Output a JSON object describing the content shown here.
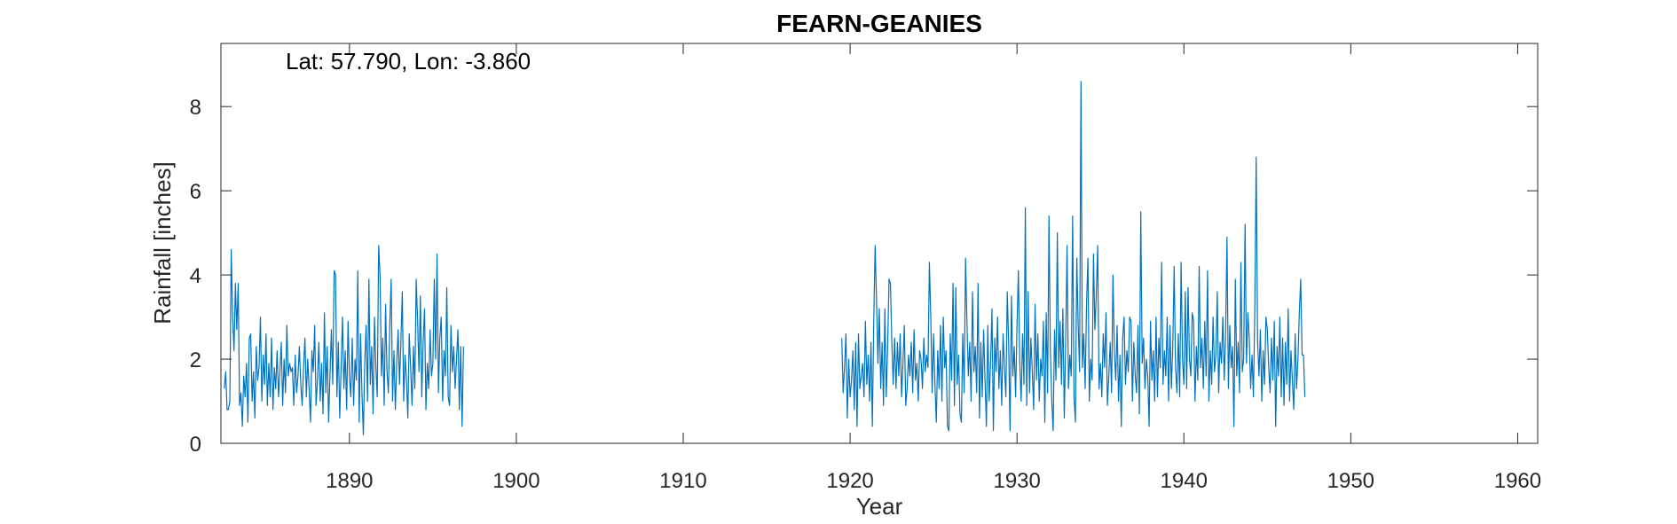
{
  "chart_data": {
    "type": "line",
    "title": "FEARN-GEANIES",
    "annotation": "Lat: 57.790, Lon: -3.860",
    "xlabel": "Year",
    "ylabel": "Rainfall [inches]",
    "xlim": [
      1882.3,
      1961.2
    ],
    "ylim": [
      0,
      9.5
    ],
    "xticks": [
      1890,
      1900,
      1910,
      1920,
      1930,
      1940,
      1950,
      1960
    ],
    "yticks": [
      0,
      2,
      4,
      6,
      8
    ],
    "grid": false,
    "line_color": "#0072BD",
    "series": [
      {
        "segments": [
          {
            "start_year": 1882.5,
            "step_years": 0.0833333,
            "values": [
              1.3,
              1.7,
              0.8,
              0.8,
              1.0,
              4.6,
              3.0,
              2.2,
              3.8,
              2.7,
              3.8,
              0.9,
              1.2,
              0.4,
              1.6,
              1.1,
              1.9,
              0.5,
              2.5,
              2.6,
              1.0,
              1.7,
              0.6,
              2.3,
              1.5,
              1.8,
              3.0,
              1.0,
              2.1,
              1.4,
              2.6,
              0.9,
              1.9,
              1.1,
              2.5,
              0.8,
              1.8,
              1.3,
              2.2,
              1.1,
              1.7,
              2.4,
              0.9,
              2.0,
              1.2,
              2.8,
              1.6,
              1.9,
              1.7,
              1.8,
              0.9,
              2.1,
              1.2,
              1.6,
              2.3,
              1.4,
              0.9,
              1.8,
              2.5,
              1.1,
              2.0,
              1.3,
              0.5,
              2.2,
              1.7,
              2.8,
              0.9,
              1.5,
              2.4,
              1.0,
              1.9,
              0.7,
              3.1,
              1.2,
              2.3,
              0.5,
              1.6,
              2.7,
              1.4,
              4.1,
              4.0,
              1.1,
              2.4,
              0.6,
              1.8,
              3.0,
              1.3,
              2.2,
              0.8,
              2.9,
              1.6,
              1.1,
              2.5,
              0.9,
              2.0,
              1.5,
              4.1,
              0.5,
              2.6,
              1.2,
              0.2,
              1.9,
              2.8,
              1.0,
              3.9,
              1.4,
              2.3,
              0.7,
              3.0,
              1.8,
              1.1,
              4.7,
              4.0,
              1.6,
              2.5,
              0.9,
              3.3,
              1.7,
              1.2,
              2.8,
              3.9,
              1.0,
              2.2,
              0.8,
              1.9,
              2.7,
              1.4,
              2.4,
              3.6,
              1.0,
              2.1,
              1.5,
              0.6,
              2.6,
              1.8,
              0.9,
              2.3,
              1.3,
              3.9,
              2.9,
              1.7,
              3.5,
              1.1,
              2.4,
              3.2,
              0.8,
              1.9,
              1.3,
              2.7,
              1.6,
              1.9,
              3.9,
              2.0,
              4.5,
              1.2,
              2.5,
              3.0,
              1.0,
              2.2,
              1.6,
              3.7,
              1.1,
              0.9,
              2.8,
              1.7,
              2.3,
              1.3,
              2.0,
              2.7,
              0.8,
              2.3,
              0.4,
              2.3
            ]
          },
          {
            "start_year": 1919.5,
            "step_years": 0.0833333,
            "values": [
              2.5,
              1.2,
              1.8,
              2.6,
              0.6,
              2.0,
              1.1,
              1.5,
              2.2,
              0.8,
              2.4,
              0.4,
              2.6,
              1.3,
              1.6,
              1.9,
              1.1,
              2.9,
              1.4,
              2.1,
              1.0,
              2.4,
              0.4,
              2.9,
              4.7,
              3.4,
              1.9,
              3.2,
              1.3,
              2.4,
              0.9,
              3.2,
              1.1,
              2.3,
              3.9,
              3.8,
              2.4,
              1.4,
              2.5,
              1.3,
              2.4,
              1.6,
              2.6,
              1.1,
              1.9,
              2.8,
              0.9,
              1.3,
              2.1,
              1.6,
              2.4,
              1.2,
              2.7,
              1.5,
              1.9,
              1.0,
              2.2,
              2.0,
              1.3,
              2.5,
              1.7,
              2.1,
              1.8,
              4.3,
              3.0,
              1.2,
              2.6,
              1.4,
              0.5,
              2.2,
              1.3,
              2.8,
              1.0,
              3.0,
              1.8,
              2.2,
              0.4,
              0.3,
              2.6,
              1.5,
              3.8,
              0.9,
              3.7,
              1.4,
              2.1,
              0.7,
              0.5,
              2.6,
              1.2,
              4.4,
              2.9,
              1.6,
              2.4,
              1.0,
              3.6,
              1.7,
              2.3,
              1.2,
              3.8,
              0.6,
              2.4,
              1.1,
              2.7,
              1.5,
              0.4,
              2.8,
              1.0,
              1.9,
              3.2,
              0.3,
              2.5,
              1.7,
              3.0,
              1.3,
              2.2,
              0.9,
              2.6,
              1.8,
              1.1,
              3.6,
              2.4,
              0.3,
              3.5,
              1.6,
              2.3,
              1.1,
              2.8,
              4.1,
              1.9,
              1.0,
              2.6,
              1.4,
              5.6,
              0.9,
              3.6,
              1.2,
              2.5,
              1.7,
              0.8,
              3.3,
              1.5,
              2.6,
              1.0,
              2.0,
              1.6,
              2.9,
              0.5,
              3.1,
              1.2,
              5.4,
              2.2,
              1.0,
              0.3,
              2.7,
              1.5,
              5.0,
              1.8,
              2.9,
              1.4,
              3.2,
              0.6,
              2.4,
              4.7,
              1.3,
              2.1,
              1.6,
              5.4,
              1.1,
              0.5,
              4.4,
              2.8,
              1.7,
              8.6,
              1.8,
              2.6,
              1.3,
              3.3,
              4.4,
              1.0,
              2.0,
              1.5,
              4.5,
              2.7,
              3.5,
              4.7,
              1.3,
              1.9,
              1.1,
              2.6,
              1.8,
              3.1,
              0.9,
              1.6,
              2.4,
              1.2,
              4.0,
              2.2,
              1.5,
              2.8,
              1.0,
              2.1,
              0.4,
              2.5,
              3.0,
              1.4,
              2.2,
              1.7,
              3.0,
              2.9,
              1.0,
              2.4,
              1.6,
              1.2,
              2.8,
              0.7,
              5.5,
              1.9,
              2.5,
              1.3,
              2.0,
              1.6,
              0.4,
              2.9,
              1.5,
              2.2,
              1.0,
              3.0,
              1.1,
              2.5,
              1.8,
              4.3,
              1.4,
              2.2,
              1.6,
              3.0,
              1.0,
              2.8,
              1.3,
              2.3,
              4.2,
              1.8,
              1.2,
              2.6,
              1.1,
              4.3,
              2.0,
              1.4,
              3.6,
              1.3,
              3.7,
              2.0,
              1.6,
              3.1,
              2.9,
              1.0,
              2.3,
              1.5,
              4.2,
              1.8,
              2.5,
              1.3,
              2.9,
              1.6,
              4.1,
              1.0,
              2.2,
              1.4,
              3.0,
              1.7,
              2.1,
              3.6,
              1.2,
              2.4,
              1.9,
              3.0,
              1.5,
              2.6,
              4.9,
              1.3,
              2.8,
              1.8,
              2.3,
              0.4,
              3.9,
              1.6,
              2.4,
              1.2,
              4.3,
              1.7,
              2.0,
              5.2,
              1.9,
              3.1,
              2.5,
              1.3,
              2.1,
              1.1,
              3.2,
              6.8,
              2.4,
              1.6,
              2.7,
              1.0,
              2.2,
              1.4,
              3.0,
              2.7,
              1.8,
              1.2,
              2.5,
              1.5,
              2.9,
              0.4,
              2.3,
              1.6,
              3.0,
              1.1,
              2.5,
              0.9,
              2.4,
              1.4,
              3.2,
              1.0,
              2.2,
              1.5,
              0.8,
              2.6,
              1.3,
              2.0,
              3.1,
              3.9,
              2.1,
              2.1,
              1.1
            ]
          }
        ]
      }
    ]
  }
}
